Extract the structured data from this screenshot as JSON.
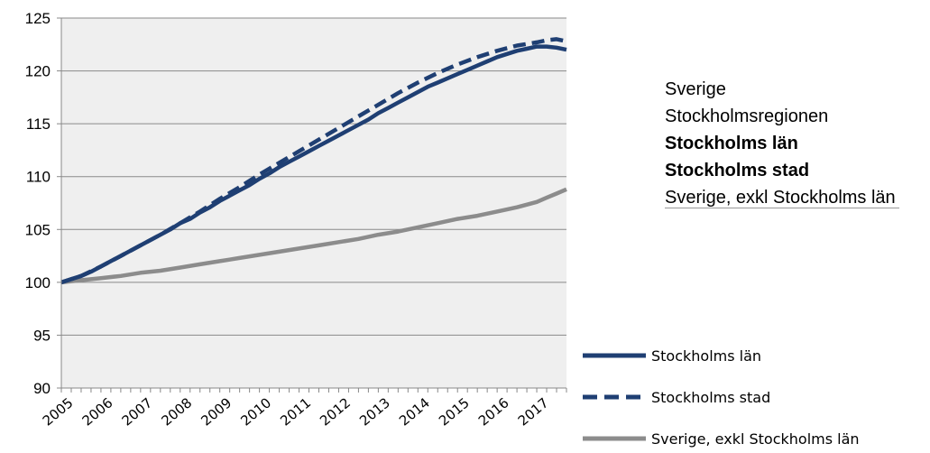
{
  "chart_data": {
    "type": "line",
    "categories": [
      "2005",
      "2006",
      "2007",
      "2008",
      "2009",
      "2010",
      "2011",
      "2012",
      "2013",
      "2014",
      "2015",
      "2016",
      "2017"
    ],
    "x_range": [
      2005,
      2017.75
    ],
    "ylim": [
      90,
      125
    ],
    "yticks": [
      90,
      95,
      100,
      105,
      110,
      115,
      120,
      125
    ],
    "series": [
      {
        "name": "Stockholms län",
        "color": "#1f3f73",
        "style": "solid",
        "x": [
          2005,
          2005.25,
          2005.5,
          2005.75,
          2006,
          2006.25,
          2006.5,
          2006.75,
          2007,
          2007.25,
          2007.5,
          2007.75,
          2008,
          2008.25,
          2008.5,
          2008.75,
          2009,
          2009.25,
          2009.5,
          2009.75,
          2010,
          2010.25,
          2010.5,
          2010.75,
          2011,
          2011.25,
          2011.5,
          2011.75,
          2012,
          2012.25,
          2012.5,
          2012.75,
          2013,
          2013.25,
          2013.5,
          2013.75,
          2014,
          2014.25,
          2014.5,
          2014.75,
          2015,
          2015.25,
          2015.5,
          2015.75,
          2016,
          2016.25,
          2016.5,
          2016.75,
          2017,
          2017.25,
          2017.5,
          2017.75
        ],
        "y": [
          100,
          100.3,
          100.6,
          101.0,
          101.5,
          102.0,
          102.5,
          103.0,
          103.5,
          104.0,
          104.5,
          105.0,
          105.6,
          106.0,
          106.6,
          107.1,
          107.7,
          108.2,
          108.7,
          109.2,
          109.8,
          110.3,
          110.9,
          111.4,
          111.9,
          112.4,
          112.9,
          113.4,
          113.9,
          114.4,
          114.9,
          115.4,
          116.0,
          116.5,
          117.0,
          117.5,
          118.0,
          118.5,
          118.9,
          119.3,
          119.7,
          120.1,
          120.5,
          120.9,
          121.3,
          121.6,
          121.9,
          122.1,
          122.3,
          122.3,
          122.2,
          122.0
        ],
        "note": "values read from plot"
      },
      {
        "name": "Stockholms stad",
        "color": "#1f3f73",
        "style": "dashed",
        "x": [
          2005,
          2005.5,
          2006,
          2006.5,
          2007,
          2007.5,
          2008,
          2008.5,
          2009,
          2009.5,
          2010,
          2010.5,
          2011,
          2011.5,
          2012,
          2012.5,
          2013,
          2013.5,
          2014,
          2014.5,
          2015,
          2015.5,
          2016,
          2016.5,
          2017,
          2017.25,
          2017.5,
          2017.75
        ],
        "y": [
          100,
          100.6,
          101.5,
          102.5,
          103.5,
          104.5,
          105.6,
          106.7,
          107.9,
          109.0,
          110.2,
          111.3,
          112.4,
          113.5,
          114.6,
          115.7,
          116.8,
          117.9,
          118.9,
          119.8,
          120.6,
          121.3,
          121.9,
          122.4,
          122.7,
          122.9,
          123.0,
          122.8
        ]
      },
      {
        "name": "Sverige, exkl Stockholms län",
        "color": "#8c8c8c",
        "style": "solid",
        "x": [
          2005,
          2005.5,
          2006,
          2006.5,
          2007,
          2007.5,
          2008,
          2008.5,
          2009,
          2009.5,
          2010,
          2010.5,
          2011,
          2011.5,
          2012,
          2012.5,
          2013,
          2013.5,
          2014,
          2014.5,
          2015,
          2015.5,
          2016,
          2016.5,
          2017,
          2017.25,
          2017.5,
          2017.75
        ],
        "y": [
          100,
          100.2,
          100.4,
          100.6,
          100.9,
          101.1,
          101.4,
          101.7,
          102.0,
          102.3,
          102.6,
          102.9,
          103.2,
          103.5,
          103.8,
          104.1,
          104.5,
          104.8,
          105.2,
          105.6,
          106.0,
          106.3,
          106.7,
          107.1,
          107.6,
          108.0,
          108.4,
          108.8
        ]
      }
    ]
  },
  "side_list": {
    "item1": "Sverige",
    "item2": "Stockholmsregionen",
    "item3": "Stockholms län",
    "item4": "Stockholms stad",
    "item5": "Sverige, exkl Stockholms län"
  },
  "legend": {
    "item1": "Stockholms län",
    "item2": "Stockholms stad",
    "item3": "Sverige, exkl Stockholms län"
  }
}
